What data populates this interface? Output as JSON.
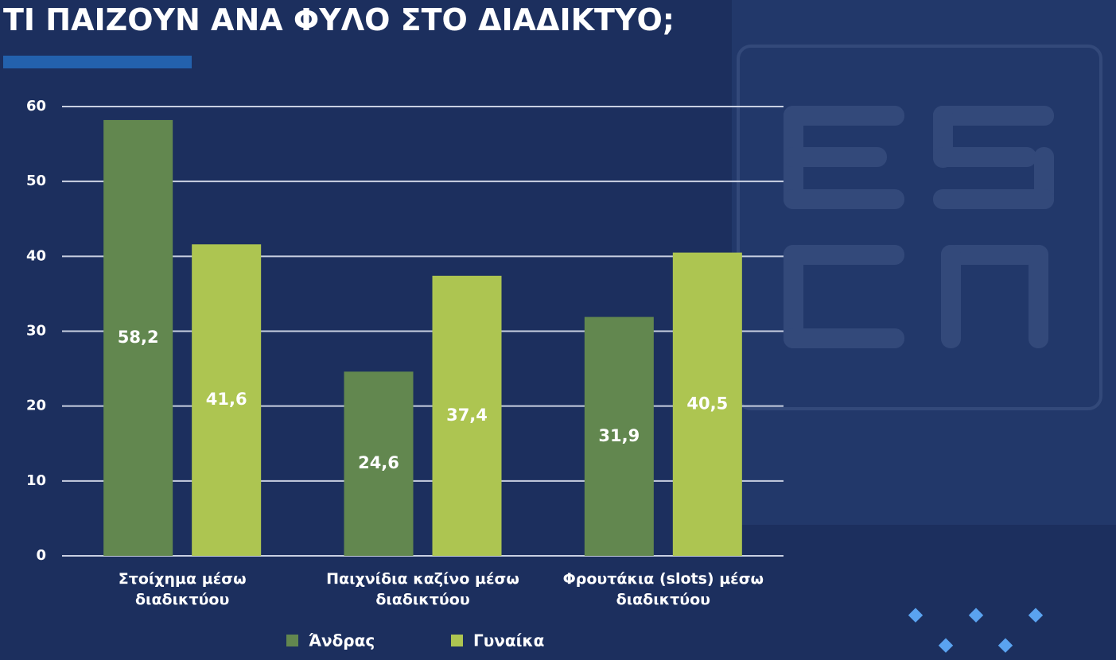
{
  "chart_data": {
    "type": "bar",
    "title": "ΤΙ ΠΑΙΖΟΥΝ ΑΝΑ ΦΥΛΟ ΣΤΟ ΔΙΑΔΙΚΤΥΟ;",
    "categories": [
      [
        "Στοίχημα μέσω",
        "διαδικτύου"
      ],
      [
        "Παιχνίδια καζίνο μέσω",
        "διαδικτύου"
      ],
      [
        "Φρουτάκια (slots) μέσω",
        "διαδικτύου"
      ]
    ],
    "series": [
      {
        "name": "Άνδρας",
        "color": "#62874f",
        "values": [
          58.2,
          24.6,
          31.9
        ],
        "value_labels": [
          "58,2",
          "24,6",
          "31,9"
        ]
      },
      {
        "name": "Γυναίκα",
        "color": "#adc551",
        "values": [
          41.6,
          37.4,
          40.5
        ],
        "value_labels": [
          "41,6",
          "37,4",
          "40,5"
        ]
      }
    ],
    "ylim": [
      0,
      60
    ],
    "yticks": [
      0,
      10,
      20,
      30,
      40,
      50,
      60
    ],
    "grid": true
  }
}
